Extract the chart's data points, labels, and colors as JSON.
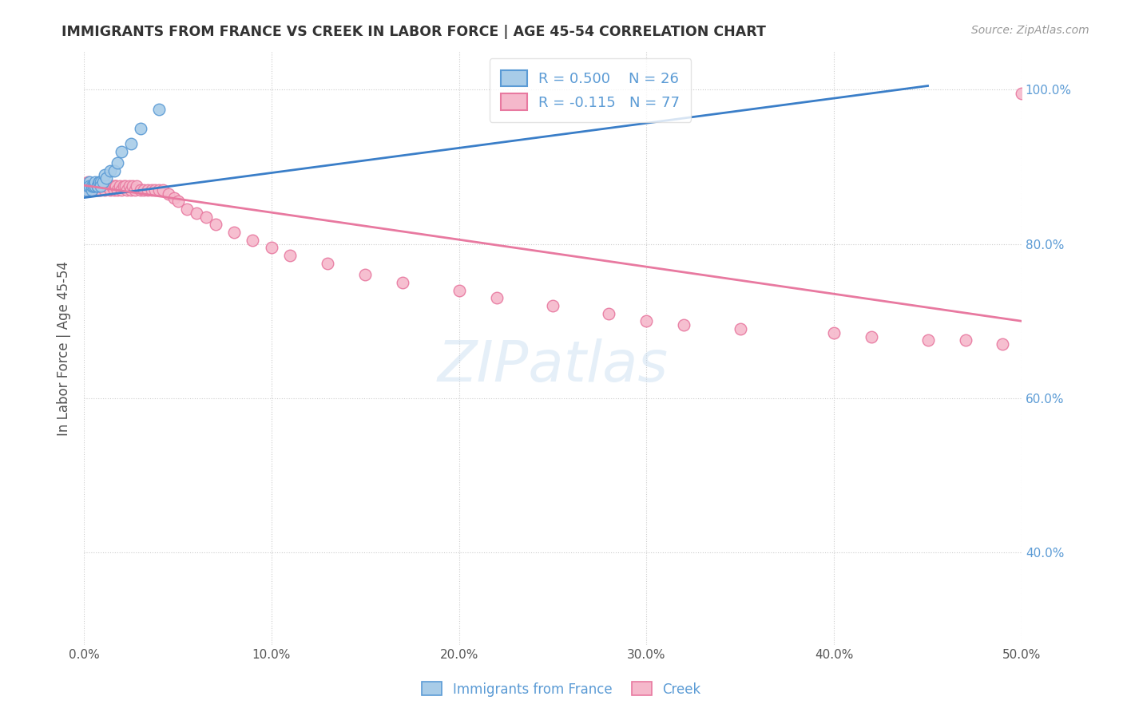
{
  "title": "IMMIGRANTS FROM FRANCE VS CREEK IN LABOR FORCE | AGE 45-54 CORRELATION CHART",
  "source_text": "Source: ZipAtlas.com",
  "ylabel": "In Labor Force | Age 45-54",
  "xmin": 0.0,
  "xmax": 0.5,
  "ymin": 0.28,
  "ymax": 1.05,
  "yticks": [
    0.4,
    0.6,
    0.8,
    1.0
  ],
  "ytick_labels": [
    "40.0%",
    "60.0%",
    "80.0%",
    "100.0%"
  ],
  "xticks": [
    0.0,
    0.1,
    0.2,
    0.3,
    0.4,
    0.5
  ],
  "xtick_labels": [
    "0.0%",
    "10.0%",
    "20.0%",
    "30.0%",
    "40.0%",
    "50.0%"
  ],
  "france_R": 0.5,
  "france_N": 26,
  "creek_R": -0.115,
  "creek_N": 77,
  "france_color": "#A8CCE8",
  "creek_color": "#F5B8CB",
  "france_edge_color": "#5B9BD5",
  "creek_edge_color": "#E879A0",
  "france_line_color": "#3A7EC8",
  "creek_line_color": "#E879A0",
  "background_color": "#ffffff",
  "grid_color": "#cccccc",
  "title_color": "#333333",
  "axis_label_color": "#555555",
  "right_tick_color": "#5B9BD5",
  "legend_color": "#5B9BD5",
  "france_x": [
    0.001,
    0.002,
    0.003,
    0.003,
    0.004,
    0.004,
    0.005,
    0.005,
    0.006,
    0.006,
    0.007,
    0.007,
    0.008,
    0.008,
    0.009,
    0.009,
    0.01,
    0.011,
    0.012,
    0.014,
    0.016,
    0.018,
    0.02,
    0.025,
    0.03,
    0.04
  ],
  "france_y": [
    0.87,
    0.875,
    0.88,
    0.875,
    0.87,
    0.875,
    0.875,
    0.875,
    0.875,
    0.88,
    0.875,
    0.875,
    0.88,
    0.88,
    0.88,
    0.875,
    0.88,
    0.89,
    0.885,
    0.895,
    0.895,
    0.905,
    0.92,
    0.93,
    0.95,
    0.975
  ],
  "creek_x": [
    0.001,
    0.002,
    0.002,
    0.003,
    0.003,
    0.004,
    0.004,
    0.004,
    0.005,
    0.005,
    0.006,
    0.006,
    0.006,
    0.007,
    0.007,
    0.007,
    0.008,
    0.008,
    0.008,
    0.009,
    0.009,
    0.01,
    0.01,
    0.011,
    0.012,
    0.013,
    0.014,
    0.015,
    0.016,
    0.016,
    0.017,
    0.017,
    0.018,
    0.019,
    0.02,
    0.021,
    0.022,
    0.023,
    0.024,
    0.025,
    0.026,
    0.027,
    0.028,
    0.03,
    0.032,
    0.034,
    0.036,
    0.038,
    0.04,
    0.042,
    0.045,
    0.048,
    0.05,
    0.055,
    0.06,
    0.065,
    0.07,
    0.08,
    0.09,
    0.1,
    0.11,
    0.13,
    0.15,
    0.17,
    0.2,
    0.22,
    0.25,
    0.28,
    0.3,
    0.32,
    0.35,
    0.4,
    0.42,
    0.45,
    0.47,
    0.49,
    0.5
  ],
  "creek_y": [
    0.875,
    0.88,
    0.875,
    0.875,
    0.87,
    0.875,
    0.87,
    0.875,
    0.875,
    0.875,
    0.87,
    0.875,
    0.875,
    0.87,
    0.875,
    0.875,
    0.87,
    0.875,
    0.875,
    0.87,
    0.875,
    0.875,
    0.875,
    0.87,
    0.875,
    0.875,
    0.87,
    0.875,
    0.875,
    0.87,
    0.875,
    0.875,
    0.87,
    0.875,
    0.87,
    0.875,
    0.875,
    0.87,
    0.875,
    0.87,
    0.875,
    0.87,
    0.875,
    0.87,
    0.87,
    0.87,
    0.87,
    0.87,
    0.87,
    0.87,
    0.865,
    0.86,
    0.855,
    0.845,
    0.84,
    0.835,
    0.825,
    0.815,
    0.805,
    0.795,
    0.785,
    0.775,
    0.76,
    0.75,
    0.74,
    0.73,
    0.72,
    0.71,
    0.7,
    0.695,
    0.69,
    0.685,
    0.68,
    0.675,
    0.675,
    0.67,
    0.995
  ],
  "france_trend_x": [
    0.0,
    0.45
  ],
  "france_trend_y": [
    0.86,
    1.005
  ],
  "creek_trend_x": [
    0.0,
    0.5
  ],
  "creek_trend_y": [
    0.876,
    0.7
  ]
}
